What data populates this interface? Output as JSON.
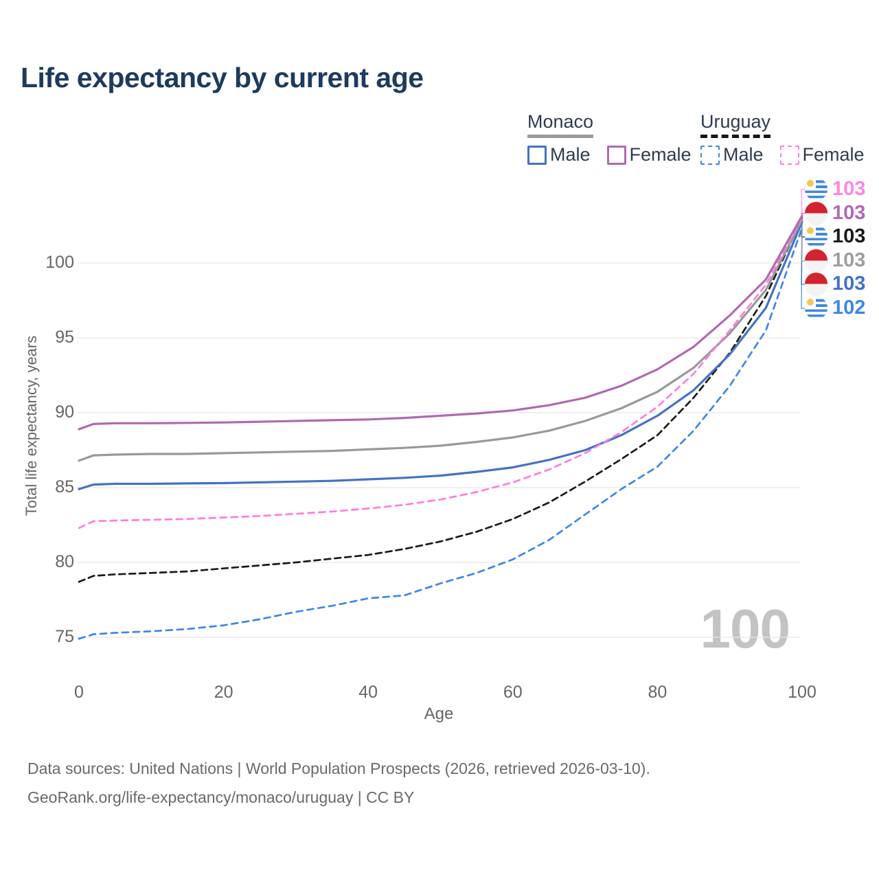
{
  "title": "Life expectancy by current age",
  "legend": {
    "groups": [
      {
        "name": "Monaco",
        "line_style": "solid",
        "underline_color": "#9b9b9b",
        "items": [
          {
            "label": "Male",
            "color": "#4472c4"
          },
          {
            "label": "Female",
            "color": "#b069b3"
          }
        ]
      },
      {
        "name": "Uruguay",
        "line_style": "dashed",
        "underline_color": "#161616",
        "items": [
          {
            "label": "Male",
            "color": "#3d86e8"
          },
          {
            "label": "Female",
            "color": "#ff7ce0"
          }
        ]
      }
    ]
  },
  "chart_data": {
    "type": "line",
    "title": "Life expectancy by current age",
    "xlabel": "Age",
    "ylabel": "Total life expectancy, years",
    "watermark": "100",
    "x_ticks": [
      0,
      20,
      40,
      60,
      80,
      100
    ],
    "y_ticks": [
      75,
      80,
      85,
      90,
      95,
      100
    ],
    "xlim": [
      0,
      100
    ],
    "ylim": [
      73,
      104
    ],
    "grid": "horizontal",
    "grid_color": "#e8e8e8",
    "legend_position": "top-right",
    "x": [
      0,
      2,
      5,
      10,
      15,
      20,
      25,
      30,
      35,
      40,
      45,
      50,
      55,
      60,
      65,
      70,
      75,
      80,
      85,
      90,
      95,
      100
    ],
    "series": [
      {
        "id": "uruguay-male",
        "name": "Uruguay Male",
        "country": "Uruguay",
        "sex": "male",
        "color": "#3d86e8",
        "dash": "9 7",
        "flag": "uruguay",
        "label_row": 5,
        "end_label": "102",
        "label_color": "#3d86e8",
        "values": [
          74.9,
          75.2,
          75.3,
          75.4,
          75.55,
          75.8,
          76.2,
          76.7,
          77.1,
          77.6,
          77.8,
          78.6,
          79.3,
          80.2,
          81.5,
          83.2,
          84.9,
          86.4,
          88.8,
          91.8,
          95.5,
          102.35
        ]
      },
      {
        "id": "uruguay-both",
        "name": "Uruguay (both sexes)",
        "country": "Uruguay",
        "sex": "both",
        "color": "#1a1a1a",
        "dash": "9 6",
        "flag": "uruguay",
        "label_row": 2,
        "end_label": "103",
        "label_color": "#1a1a1a",
        "values": [
          78.7,
          79.1,
          79.2,
          79.3,
          79.4,
          79.6,
          79.8,
          80.0,
          80.25,
          80.5,
          80.9,
          81.4,
          82.05,
          82.9,
          84.0,
          85.4,
          86.9,
          88.5,
          91.0,
          94.0,
          97.8,
          103.0
        ]
      },
      {
        "id": "monaco-male",
        "name": "Monaco Male",
        "country": "Monaco",
        "sex": "male",
        "color": "#4472c4",
        "dash": null,
        "flag": "monaco",
        "label_row": 4,
        "end_label": "103",
        "label_color": "#4472c4",
        "values": [
          84.9,
          85.2,
          85.25,
          85.25,
          85.28,
          85.3,
          85.35,
          85.4,
          85.45,
          85.55,
          85.65,
          85.8,
          86.05,
          86.35,
          86.85,
          87.5,
          88.5,
          89.8,
          91.5,
          93.9,
          97.0,
          102.75
        ]
      },
      {
        "id": "monaco-both",
        "name": "Monaco (both sexes)",
        "country": "Monaco",
        "sex": "both",
        "color": "#999999",
        "dash": null,
        "flag": "monaco",
        "label_row": 3,
        "end_label": "103",
        "label_color": "#9e9e9e",
        "values": [
          86.8,
          87.15,
          87.2,
          87.25,
          87.25,
          87.3,
          87.35,
          87.4,
          87.45,
          87.55,
          87.65,
          87.8,
          88.05,
          88.35,
          88.8,
          89.45,
          90.3,
          91.4,
          93.0,
          95.3,
          98.2,
          102.9
        ]
      },
      {
        "id": "uruguay-female",
        "name": "Uruguay Female",
        "country": "Uruguay",
        "sex": "female",
        "color": "#ff7ce0",
        "dash": "9 7",
        "flag": "uruguay",
        "label_row": 0,
        "end_label": "103",
        "label_color": "#ff85e3",
        "values": [
          82.3,
          82.75,
          82.8,
          82.85,
          82.9,
          83.0,
          83.1,
          83.25,
          83.4,
          83.6,
          83.85,
          84.2,
          84.7,
          85.35,
          86.2,
          87.3,
          88.7,
          90.4,
          92.6,
          95.5,
          98.55,
          103.05
        ]
      },
      {
        "id": "monaco-female",
        "name": "Monaco Female",
        "country": "Monaco",
        "sex": "female",
        "color": "#b069b3",
        "dash": null,
        "flag": "monaco",
        "label_row": 1,
        "end_label": "103",
        "label_color": "#b069b8",
        "values": [
          88.9,
          89.25,
          89.3,
          89.3,
          89.32,
          89.35,
          89.4,
          89.45,
          89.5,
          89.55,
          89.65,
          89.8,
          89.95,
          90.15,
          90.5,
          91.0,
          91.8,
          92.9,
          94.4,
          96.5,
          98.9,
          103.15
        ]
      }
    ]
  },
  "flag_colors": {
    "uruguay_blue": "#3f8ad8",
    "uruguay_sun": "#f6c750",
    "monaco_red": "#d2232f",
    "monaco_white": "#f2f3f2"
  },
  "footer": {
    "line1": "Data sources: United Nations | World Population Prospects (2026, retrieved 2026-03-10).",
    "line2": "GeoRank.org/life-expectancy/monaco/uruguay | CC BY"
  }
}
